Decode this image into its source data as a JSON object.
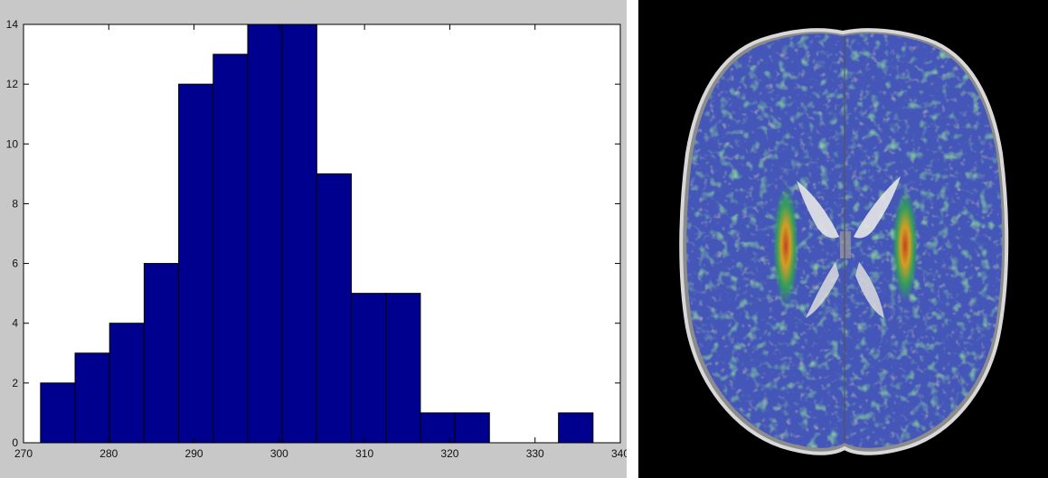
{
  "chart_data": {
    "type": "bar",
    "title": "",
    "xlabel": "",
    "ylabel": "",
    "xlim": [
      270,
      340
    ],
    "ylim": [
      0,
      14
    ],
    "xticks": [
      270,
      280,
      290,
      300,
      310,
      320,
      330,
      340
    ],
    "yticks": [
      0,
      2,
      4,
      6,
      8,
      10,
      12,
      14
    ],
    "bin_width": 4.05,
    "bins": [
      {
        "x0": 272.0,
        "count": 2
      },
      {
        "x0": 276.05,
        "count": 3
      },
      {
        "x0": 280.1,
        "count": 4
      },
      {
        "x0": 284.15,
        "count": 6
      },
      {
        "x0": 288.2,
        "count": 12
      },
      {
        "x0": 292.25,
        "count": 13
      },
      {
        "x0": 296.3,
        "count": 14
      },
      {
        "x0": 300.35,
        "count": 14
      },
      {
        "x0": 304.4,
        "count": 9
      },
      {
        "x0": 308.45,
        "count": 5
      },
      {
        "x0": 312.5,
        "count": 5
      },
      {
        "x0": 316.55,
        "count": 1
      },
      {
        "x0": 320.6,
        "count": 1
      },
      {
        "x0": 324.65,
        "count": 0
      },
      {
        "x0": 328.7,
        "count": 0
      },
      {
        "x0": 332.75,
        "count": 1
      }
    ],
    "bar_color": "#00008f",
    "grid": false,
    "legend": "none"
  },
  "image_panel": {
    "subject": "axial brain MRI slice with color overlay",
    "background": "#000000",
    "overlay_colors": [
      "#3d4db5",
      "#2f9f5a",
      "#d9a21a",
      "#c8401c"
    ]
  }
}
